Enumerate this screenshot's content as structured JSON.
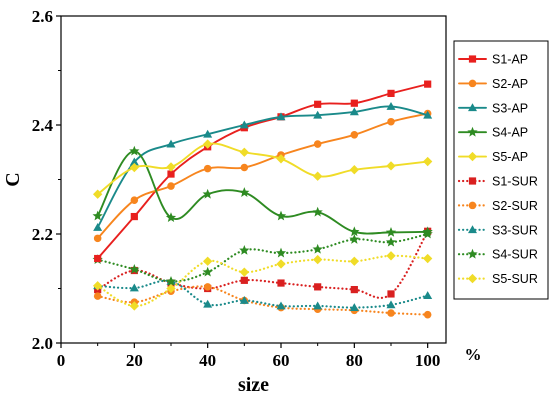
{
  "chart_data": {
    "type": "line",
    "xlabel": "size",
    "x_unit": "%",
    "ylabel": "C",
    "xlim": [
      0,
      105
    ],
    "ylim": [
      2.0,
      2.6
    ],
    "xticks": [
      0,
      20,
      40,
      60,
      80,
      100
    ],
    "yticks": [
      2.0,
      2.2,
      2.4,
      2.6
    ],
    "grid": false,
    "legend_position": "right",
    "x": [
      10,
      20,
      30,
      40,
      50,
      60,
      70,
      80,
      90,
      100
    ],
    "series": [
      {
        "name": "S1-AP",
        "color": "#e8201e",
        "marker": "square",
        "dash": "solid",
        "smooth": true,
        "values": [
          2.155,
          2.232,
          2.31,
          2.36,
          2.395,
          2.415,
          2.438,
          2.44,
          2.458,
          2.475
        ]
      },
      {
        "name": "S2-AP",
        "color": "#f7851e",
        "marker": "circle",
        "dash": "solid",
        "smooth": true,
        "values": [
          2.192,
          2.262,
          2.288,
          2.32,
          2.322,
          2.345,
          2.365,
          2.382,
          2.406,
          2.421
        ]
      },
      {
        "name": "S3-AP",
        "color": "#1a8a8a",
        "marker": "triangle",
        "dash": "solid",
        "smooth": true,
        "values": [
          2.212,
          2.332,
          2.365,
          2.383,
          2.4,
          2.415,
          2.418,
          2.424,
          2.434,
          2.418
        ]
      },
      {
        "name": "S4-AP",
        "color": "#2e8b22",
        "marker": "star",
        "dash": "solid",
        "smooth": true,
        "values": [
          2.233,
          2.352,
          2.23,
          2.273,
          2.276,
          2.233,
          2.24,
          2.204,
          2.203,
          2.204
        ]
      },
      {
        "name": "S5-AP",
        "color": "#f0dc28",
        "marker": "diamond",
        "dash": "solid",
        "smooth": true,
        "values": [
          2.273,
          2.322,
          2.323,
          2.365,
          2.35,
          2.338,
          2.306,
          2.318,
          2.325,
          2.333
        ]
      },
      {
        "name": "S1-SUR",
        "color": "#d92020",
        "marker": "square",
        "dash": "dot",
        "smooth": true,
        "values": [
          2.098,
          2.133,
          2.11,
          2.1,
          2.115,
          2.11,
          2.103,
          2.098,
          2.09,
          2.205
        ]
      },
      {
        "name": "S2-SUR",
        "color": "#f7851e",
        "marker": "circle",
        "dash": "dot",
        "smooth": true,
        "values": [
          2.086,
          2.075,
          2.095,
          2.103,
          2.078,
          2.065,
          2.062,
          2.06,
          2.055,
          2.052
        ]
      },
      {
        "name": "S3-SUR",
        "color": "#1a8a8a",
        "marker": "triangle",
        "dash": "dot",
        "smooth": true,
        "values": [
          2.105,
          2.101,
          2.113,
          2.071,
          2.078,
          2.068,
          2.068,
          2.065,
          2.07,
          2.087
        ]
      },
      {
        "name": "S4-SUR",
        "color": "#2e8b22",
        "marker": "star",
        "dash": "dot",
        "smooth": true,
        "values": [
          2.153,
          2.135,
          2.113,
          2.13,
          2.17,
          2.165,
          2.172,
          2.19,
          2.185,
          2.2
        ]
      },
      {
        "name": "S5-SUR",
        "color": "#f0dc28",
        "marker": "diamond",
        "dash": "dot",
        "smooth": true,
        "values": [
          2.105,
          2.068,
          2.1,
          2.15,
          2.13,
          2.145,
          2.153,
          2.15,
          2.16,
          2.155
        ]
      }
    ]
  }
}
